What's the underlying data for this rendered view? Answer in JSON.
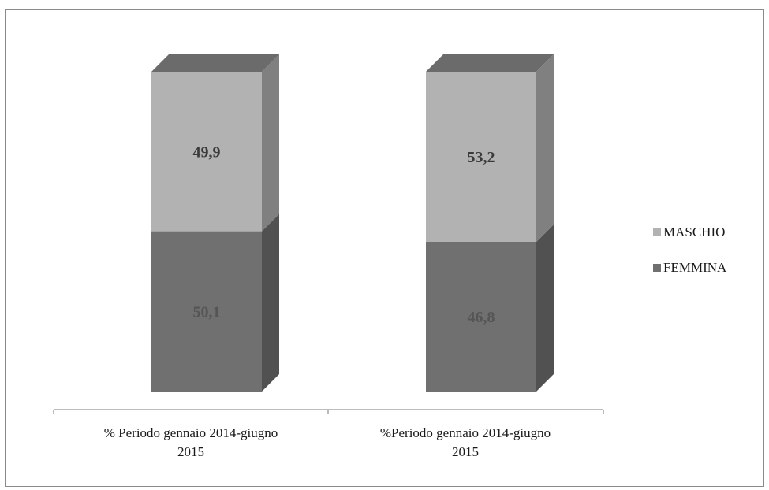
{
  "chart_data": {
    "type": "bar",
    "stacked": true,
    "three_d": true,
    "categories": [
      [
        "% Periodo gennaio 2014-giugno",
        "2015"
      ],
      [
        "%Periodo gennaio 2014-giugno",
        "2015"
      ]
    ],
    "series": [
      {
        "name": "FEMMINA",
        "values": [
          50.1,
          46.8
        ],
        "labels": [
          "50,1",
          "46,8"
        ],
        "color": "#707070",
        "label_color": "#555555"
      },
      {
        "name": "MASCHIO",
        "values": [
          49.9,
          53.2
        ],
        "labels": [
          "49,9",
          "53,2"
        ],
        "color": "#b2b2b2",
        "label_color": "#3a3a3a"
      }
    ],
    "legend_order": [
      "MASCHIO",
      "FEMMINA"
    ],
    "legend_position": "right",
    "ylim": [
      0,
      100
    ],
    "grid": false,
    "title": "",
    "xlabel": "",
    "ylabel": ""
  }
}
